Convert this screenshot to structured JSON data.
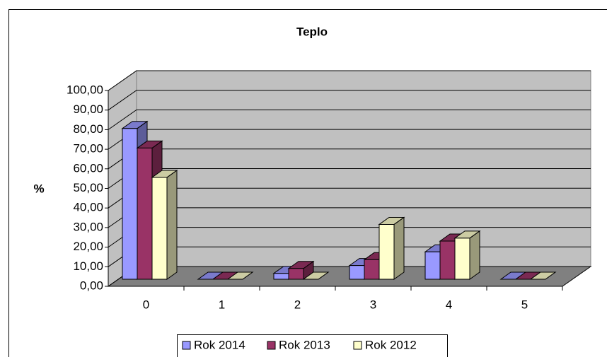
{
  "chart_data": {
    "type": "bar3d",
    "title": "Teplo",
    "ylabel": "%",
    "categories": [
      "0",
      "1",
      "2",
      "3",
      "4",
      "5"
    ],
    "series": [
      {
        "name": "Rok 2014",
        "color": "#9999ff",
        "values": [
          77,
          0,
          3,
          7,
          14,
          0
        ]
      },
      {
        "name": "Rok 2013",
        "color": "#993366",
        "values": [
          67,
          0,
          5.5,
          10,
          19.5,
          0
        ]
      },
      {
        "name": "Rok 2012",
        "color": "#ffffcc",
        "values": [
          52,
          0,
          0,
          28,
          21,
          0
        ]
      }
    ],
    "ylim": [
      0,
      100
    ],
    "yticks": [
      {
        "value": 0,
        "label": "0,00"
      },
      {
        "value": 10,
        "label": "10,00"
      },
      {
        "value": 20,
        "label": "20,00"
      },
      {
        "value": 30,
        "label": "30,00"
      },
      {
        "value": 40,
        "label": "40,00"
      },
      {
        "value": 50,
        "label": "50,00"
      },
      {
        "value": 60,
        "label": "60,00"
      },
      {
        "value": 70,
        "label": "70,00"
      },
      {
        "value": 80,
        "label": "80,00"
      },
      {
        "value": 90,
        "label": "90,00"
      },
      {
        "value": 100,
        "label": "100,00"
      }
    ],
    "grid": true,
    "legend": "bottom"
  }
}
